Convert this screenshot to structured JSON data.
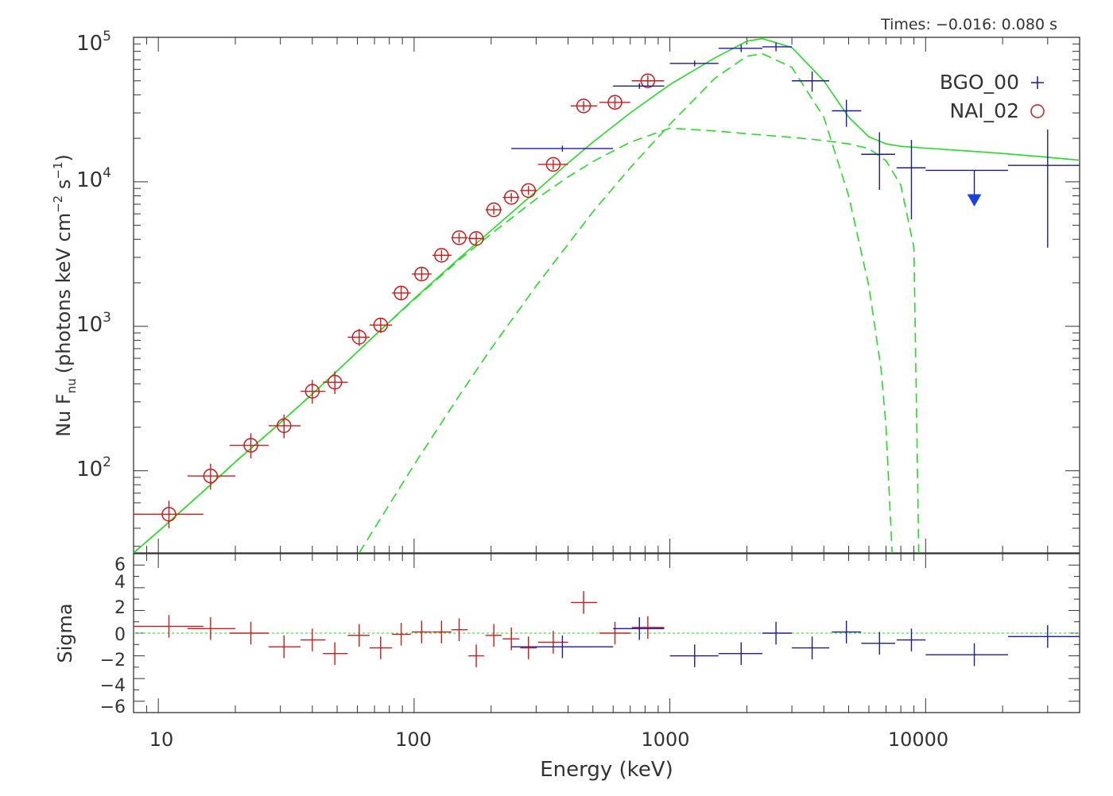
{
  "times_label": "Times: −0.016: 0.080 s",
  "colors": {
    "bgo": "#1a1aa0",
    "nai": "#cc1a1a",
    "model": "#22dd22",
    "axis": "#333333",
    "upper_limit": "#1a40e0"
  },
  "chart_data": [
    {
      "type": "scatter",
      "scale": {
        "x": "log",
        "y": "log"
      },
      "xlim": [
        8,
        40000
      ],
      "ylim": [
        27,
        100000
      ],
      "xlabel": "",
      "ylabel": "Nu F_nu (photons keV cm^-2 s^-1)",
      "ylabel_parts": {
        "main": "Nu F",
        "sub": "nu",
        "paren": "(photons keV cm",
        "exp1": "−2",
        "mid": " s",
        "exp2": "−1",
        "close": ")"
      },
      "y_ticks": [
        {
          "value": 100,
          "base": "10",
          "exp": "2"
        },
        {
          "value": 1000,
          "base": "10",
          "exp": "3"
        },
        {
          "value": 10000,
          "base": "10",
          "exp": "4"
        },
        {
          "value": 100000,
          "base": "10",
          "exp": "5"
        }
      ],
      "legend": {
        "position": "top-right",
        "entries": [
          {
            "label": "BGO_00",
            "marker": "+"
          },
          {
            "label": "NAI_02",
            "marker": "o"
          }
        ]
      },
      "series": [
        {
          "name": "NAI_02",
          "points": [
            {
              "x": 11,
              "xlo": 8,
              "xhi": 15,
              "y": 50,
              "ylo": 40,
              "yhi": 62
            },
            {
              "x": 16,
              "xlo": 13,
              "xhi": 20,
              "y": 92,
              "ylo": 74,
              "yhi": 112
            },
            {
              "x": 23,
              "xlo": 19,
              "xhi": 27,
              "y": 150,
              "ylo": 122,
              "yhi": 182
            },
            {
              "x": 31,
              "xlo": 27,
              "xhi": 36,
              "y": 205,
              "ylo": 168,
              "yhi": 245
            },
            {
              "x": 40,
              "xlo": 36,
              "xhi": 45,
              "y": 355,
              "ylo": 292,
              "yhi": 425
            },
            {
              "x": 49,
              "xlo": 44,
              "xhi": 55,
              "y": 410,
              "ylo": 340,
              "yhi": 488
            },
            {
              "x": 61,
              "xlo": 55,
              "xhi": 67,
              "y": 840,
              "ylo": 730,
              "yhi": 960
            },
            {
              "x": 74,
              "xlo": 67,
              "xhi": 82,
              "y": 1020,
              "ylo": 900,
              "yhi": 1150
            },
            {
              "x": 89,
              "xlo": 82,
              "xhi": 97,
              "y": 1700,
              "ylo": 1530,
              "yhi": 1880
            },
            {
              "x": 107,
              "xlo": 98,
              "xhi": 117,
              "y": 2300,
              "ylo": 2100,
              "yhi": 2530
            },
            {
              "x": 128,
              "xlo": 118,
              "xhi": 140,
              "y": 3100,
              "ylo": 2850,
              "yhi": 3380
            },
            {
              "x": 150,
              "xlo": 140,
              "xhi": 162,
              "y": 4100,
              "ylo": 3780,
              "yhi": 4450
            },
            {
              "x": 175,
              "xlo": 163,
              "xhi": 188,
              "y": 4050,
              "ylo": 3680,
              "yhi": 4450
            },
            {
              "x": 205,
              "xlo": 190,
              "xhi": 220,
              "y": 6400,
              "ylo": 5950,
              "yhi": 6880
            },
            {
              "x": 240,
              "xlo": 222,
              "xhi": 258,
              "y": 7800,
              "ylo": 7250,
              "yhi": 8380
            },
            {
              "x": 280,
              "xlo": 260,
              "xhi": 302,
              "y": 8700,
              "ylo": 8100,
              "yhi": 9350
            },
            {
              "x": 350,
              "xlo": 305,
              "xhi": 400,
              "y": 13200,
              "ylo": 12200,
              "yhi": 14300
            },
            {
              "x": 460,
              "xlo": 410,
              "xhi": 520,
              "y": 33500,
              "ylo": 31000,
              "yhi": 36200
            },
            {
              "x": 610,
              "xlo": 530,
              "xhi": 700,
              "y": 35500,
              "ylo": 32500,
              "yhi": 38800
            },
            {
              "x": 820,
              "xlo": 710,
              "xhi": 950,
              "y": 50000,
              "ylo": 46000,
              "yhi": 54500
            }
          ],
          "residuals": [
            {
              "x": 11,
              "xlo": 8,
              "xhi": 15,
              "y": 0.6,
              "ylo": -0.4,
              "yhi": 1.6
            },
            {
              "x": 16,
              "xlo": 13,
              "xhi": 20,
              "y": 0.4,
              "ylo": -0.6,
              "yhi": 1.4
            },
            {
              "x": 23,
              "xlo": 19,
              "xhi": 27,
              "y": 0.0,
              "ylo": -1.0,
              "yhi": 1.0
            },
            {
              "x": 31,
              "xlo": 27,
              "xhi": 36,
              "y": -1.2,
              "ylo": -2.2,
              "yhi": -0.2
            },
            {
              "x": 40,
              "xlo": 36,
              "xhi": 45,
              "y": -0.6,
              "ylo": -1.6,
              "yhi": 0.4
            },
            {
              "x": 49,
              "xlo": 44,
              "xhi": 55,
              "y": -1.8,
              "ylo": -2.8,
              "yhi": -0.8
            },
            {
              "x": 61,
              "xlo": 55,
              "xhi": 67,
              "y": -0.2,
              "ylo": -1.2,
              "yhi": 0.8
            },
            {
              "x": 74,
              "xlo": 67,
              "xhi": 82,
              "y": -1.3,
              "ylo": -2.3,
              "yhi": -0.3
            },
            {
              "x": 89,
              "xlo": 82,
              "xhi": 97,
              "y": -0.1,
              "ylo": -1.1,
              "yhi": 0.9
            },
            {
              "x": 107,
              "xlo": 98,
              "xhi": 117,
              "y": 0.1,
              "ylo": -0.9,
              "yhi": 1.1
            },
            {
              "x": 128,
              "xlo": 118,
              "xhi": 140,
              "y": 0.1,
              "ylo": -0.9,
              "yhi": 1.1
            },
            {
              "x": 150,
              "xlo": 140,
              "xhi": 162,
              "y": 0.3,
              "ylo": -0.7,
              "yhi": 1.3
            },
            {
              "x": 175,
              "xlo": 163,
              "xhi": 188,
              "y": -2.0,
              "ylo": -3.0,
              "yhi": -1.0
            },
            {
              "x": 205,
              "xlo": 190,
              "xhi": 220,
              "y": -0.2,
              "ylo": -1.2,
              "yhi": 0.8
            },
            {
              "x": 240,
              "xlo": 222,
              "xhi": 258,
              "y": -0.5,
              "ylo": -1.5,
              "yhi": 0.5
            },
            {
              "x": 280,
              "xlo": 260,
              "xhi": 302,
              "y": -1.3,
              "ylo": -2.3,
              "yhi": -0.3
            },
            {
              "x": 350,
              "xlo": 305,
              "xhi": 400,
              "y": -0.8,
              "ylo": -1.8,
              "yhi": 0.2
            },
            {
              "x": 460,
              "xlo": 410,
              "xhi": 520,
              "y": 2.7,
              "ylo": 1.7,
              "yhi": 3.7
            },
            {
              "x": 610,
              "xlo": 530,
              "xhi": 700,
              "y": 0.0,
              "ylo": -1.0,
              "yhi": 1.0
            },
            {
              "x": 820,
              "xlo": 710,
              "xhi": 950,
              "y": 0.5,
              "ylo": -0.5,
              "yhi": 1.5
            }
          ]
        },
        {
          "name": "BGO_00",
          "points": [
            {
              "x": 380,
              "xlo": 240,
              "xhi": 600,
              "y": 17000,
              "ylo": 16200,
              "yhi": 17800
            },
            {
              "x": 760,
              "xlo": 600,
              "xhi": 950,
              "y": 46000,
              "ylo": 44000,
              "yhi": 48000
            },
            {
              "x": 1250,
              "xlo": 1000,
              "xhi": 1550,
              "y": 66000,
              "ylo": 63000,
              "yhi": 69000
            },
            {
              "x": 1900,
              "xlo": 1550,
              "xhi": 2300,
              "y": 84000,
              "ylo": 79000,
              "yhi": 89000
            },
            {
              "x": 2600,
              "xlo": 2300,
              "xhi": 3000,
              "y": 86000,
              "ylo": 80000,
              "yhi": 92000
            },
            {
              "x": 3600,
              "xlo": 3000,
              "xhi": 4200,
              "y": 50000,
              "ylo": 42000,
              "yhi": 58000
            },
            {
              "x": 4900,
              "xlo": 4300,
              "xhi": 5600,
              "y": 31000,
              "ylo": 24000,
              "yhi": 37000
            },
            {
              "x": 6600,
              "xlo": 5600,
              "xhi": 7600,
              "y": 15500,
              "ylo": 8800,
              "yhi": 22000
            },
            {
              "x": 8800,
              "xlo": 7700,
              "xhi": 10000,
              "y": 12500,
              "ylo": 5500,
              "yhi": 19500
            },
            {
              "x": 30000,
              "xlo": 21000,
              "xhi": 40000,
              "y": 13000,
              "ylo": 3500,
              "yhi": 23000
            }
          ],
          "upper_limits": [
            {
              "x": 15500,
              "xlo": 10000,
              "xhi": 21000,
              "y": 12000,
              "arrow_to": 7000
            }
          ],
          "residuals": [
            {
              "x": 380,
              "xlo": 240,
              "xhi": 600,
              "y": -1.2,
              "ylo": -2.2,
              "yhi": -0.2
            },
            {
              "x": 760,
              "xlo": 600,
              "xhi": 950,
              "y": 0.4,
              "ylo": -0.6,
              "yhi": 1.4
            },
            {
              "x": 1250,
              "xlo": 1000,
              "xhi": 1550,
              "y": -2.0,
              "ylo": -3.0,
              "yhi": -1.0
            },
            {
              "x": 1900,
              "xlo": 1550,
              "xhi": 2300,
              "y": -1.8,
              "ylo": -2.8,
              "yhi": -0.8
            },
            {
              "x": 2600,
              "xlo": 2300,
              "xhi": 3000,
              "y": 0.0,
              "ylo": -1.0,
              "yhi": 1.0
            },
            {
              "x": 3600,
              "xlo": 3000,
              "xhi": 4200,
              "y": -1.3,
              "ylo": -2.3,
              "yhi": -0.3
            },
            {
              "x": 4900,
              "xlo": 4300,
              "xhi": 5600,
              "y": 0.1,
              "ylo": -0.9,
              "yhi": 1.1
            },
            {
              "x": 6600,
              "xlo": 5600,
              "xhi": 7600,
              "y": -0.9,
              "ylo": -1.9,
              "yhi": 0.1
            },
            {
              "x": 8800,
              "xlo": 7700,
              "xhi": 10000,
              "y": -0.6,
              "ylo": -1.6,
              "yhi": 0.4
            },
            {
              "x": 15500,
              "xlo": 10000,
              "xhi": 21000,
              "y": -1.9,
              "ylo": -2.9,
              "yhi": -0.9
            },
            {
              "x": 30000,
              "xlo": 21000,
              "xhi": 40000,
              "y": -0.3,
              "ylo": -1.3,
              "yhi": 0.7
            }
          ]
        }
      ],
      "model_curves": [
        {
          "style": "solid",
          "points": [
            [
              8,
              27
            ],
            [
              10,
              38
            ],
            [
              15,
              72
            ],
            [
              20,
              115
            ],
            [
              30,
              215
            ],
            [
              40,
              340
            ],
            [
              50,
              490
            ],
            [
              70,
              860
            ],
            [
              100,
              1550
            ],
            [
              150,
              2950
            ],
            [
              200,
              4600
            ],
            [
              300,
              8600
            ],
            [
              400,
              13500
            ],
            [
              500,
              18800
            ],
            [
              700,
              30000
            ],
            [
              1000,
              47000
            ],
            [
              1500,
              72000
            ],
            [
              2000,
              94000
            ],
            [
              2300,
              98000
            ],
            [
              3000,
              85000
            ],
            [
              4000,
              50000
            ],
            [
              5000,
              28000
            ],
            [
              6000,
              20500
            ],
            [
              7000,
              18300
            ],
            [
              8000,
              17600
            ],
            [
              10000,
              17100
            ],
            [
              15000,
              16300
            ],
            [
              20000,
              15700
            ],
            [
              30000,
              14800
            ],
            [
              40000,
              14100
            ]
          ]
        },
        {
          "style": "dashed",
          "points": [
            [
              8,
              27
            ],
            [
              10,
              38
            ],
            [
              15,
              72
            ],
            [
              20,
              115
            ],
            [
              30,
              215
            ],
            [
              40,
              340
            ],
            [
              50,
              490
            ],
            [
              70,
              860
            ],
            [
              100,
              1530
            ],
            [
              150,
              2880
            ],
            [
              200,
              4350
            ],
            [
              300,
              7600
            ],
            [
              400,
              10800
            ],
            [
              500,
              13800
            ],
            [
              700,
              18800
            ],
            [
              1000,
              23500
            ],
            [
              1500,
              22500
            ],
            [
              2000,
              21500
            ],
            [
              3000,
              20300
            ],
            [
              4000,
              19300
            ],
            [
              5000,
              18300
            ],
            [
              6000,
              17000
            ],
            [
              7000,
              14000
            ],
            [
              8000,
              9500
            ],
            [
              9000,
              3500
            ],
            [
              9400,
              27
            ]
          ]
        },
        {
          "style": "dashed",
          "points": [
            [
              61,
              27
            ],
            [
              100,
              110
            ],
            [
              150,
              330
            ],
            [
              200,
              700
            ],
            [
              300,
              1900
            ],
            [
              400,
              3700
            ],
            [
              500,
              6200
            ],
            [
              700,
              12500
            ],
            [
              1000,
              25000
            ],
            [
              1500,
              52000
            ],
            [
              2000,
              74000
            ],
            [
              2300,
              77000
            ],
            [
              3000,
              62000
            ],
            [
              4000,
              28000
            ],
            [
              5000,
              8000
            ],
            [
              6000,
              1900
            ],
            [
              6700,
              500
            ],
            [
              7000,
              200
            ],
            [
              7400,
              27
            ]
          ]
        }
      ]
    },
    {
      "type": "scatter",
      "scale": {
        "x": "log",
        "y": "linear"
      },
      "xlim": [
        8,
        40000
      ],
      "ylim": [
        -7,
        7
      ],
      "xlabel": "Energy (keV)",
      "ylabel": "Sigma",
      "x_ticks": [
        "10",
        "100",
        "1000",
        "10000"
      ],
      "y_ticks": [
        "6",
        "4",
        "2",
        "0",
        "−2",
        "−4",
        "−6"
      ],
      "zero_line": 0
    }
  ]
}
